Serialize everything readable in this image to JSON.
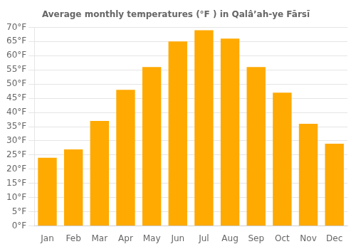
{
  "chart_data": {
    "type": "bar",
    "title": "Average monthly temperatures (°F ) in Qalâʼah-ye Fārsī",
    "categories": [
      "Jan",
      "Feb",
      "Mar",
      "Apr",
      "May",
      "Jun",
      "Jul",
      "Aug",
      "Sep",
      "Oct",
      "Nov",
      "Dec"
    ],
    "values": [
      24,
      27,
      37,
      48,
      56,
      65,
      69,
      66,
      56,
      47,
      36,
      29
    ],
    "color": "#FFAA00",
    "ylim": [
      0,
      70
    ],
    "yticks": [
      {
        "value": 0,
        "label": "0°F"
      },
      {
        "value": 5,
        "label": "5°F"
      },
      {
        "value": 10,
        "label": "10°F"
      },
      {
        "value": 15,
        "label": "15°F"
      },
      {
        "value": 20,
        "label": "20°F"
      },
      {
        "value": 25,
        "label": "25°F"
      },
      {
        "value": 30,
        "label": "30°F"
      },
      {
        "value": 35,
        "label": "35°F"
      },
      {
        "value": 40,
        "label": "40°F"
      },
      {
        "value": 45,
        "label": "45°F"
      },
      {
        "value": 50,
        "label": "50°F"
      },
      {
        "value": 55,
        "label": "55°F"
      },
      {
        "value": 60,
        "label": "60°F"
      },
      {
        "value": 65,
        "label": "65°F"
      },
      {
        "value": 70,
        "label": "70°F"
      }
    ],
    "grid": true
  }
}
